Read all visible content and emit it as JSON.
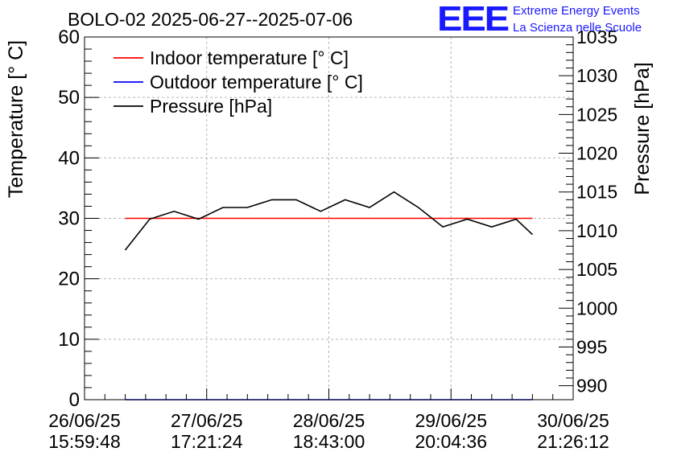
{
  "chart_data": {
    "type": "line",
    "title": "BOLO-02 2025-06-27--2025-07-06",
    "logo": {
      "mark": "EEE",
      "line1": "Extreme Energy Events",
      "line2": "La Scienza nelle Scuole",
      "color": "#1a1aff"
    },
    "ylabel": "Temperature [° C]",
    "y2label": "Pressure [hPa]",
    "ylim": [
      0,
      60
    ],
    "y2lim": [
      988.2,
      1035
    ],
    "yticks": [
      "0",
      "10",
      "20",
      "30",
      "40",
      "50",
      "60"
    ],
    "y2ticks": [
      "990",
      "995",
      "1000",
      "1005",
      "1010",
      "1015",
      "1020",
      "1025",
      "1030",
      "1035"
    ],
    "xlim": [
      0,
      4
    ],
    "xticks": [
      {
        "date": "26/06/25",
        "time": "15:59:48"
      },
      {
        "date": "27/06/25",
        "time": "17:21:24"
      },
      {
        "date": "28/06/25",
        "time": "18:43:00"
      },
      {
        "date": "29/06/25",
        "time": "20:04:36"
      },
      {
        "date": "30/06/25",
        "time": "21:26:12"
      }
    ],
    "grid": true,
    "legend_position": "top-left",
    "series": [
      {
        "name": "Indoor temperature [° C]",
        "color": "#ff0000",
        "axis": "left",
        "x": [
          0.333,
          3.667
        ],
        "values": [
          30,
          30
        ]
      },
      {
        "name": "Outdoor temperature [° C]",
        "color": "#0000ff",
        "axis": "left",
        "x": [
          0.333,
          3.667
        ],
        "values": [
          0,
          0
        ]
      },
      {
        "name": "Pressure [hPa]",
        "color": "#000000",
        "axis": "right",
        "x": [
          0.333,
          0.533,
          0.733,
          0.933,
          1.133,
          1.333,
          1.533,
          1.733,
          1.933,
          2.133,
          2.333,
          2.533,
          2.733,
          2.933,
          3.133,
          3.333,
          3.533,
          3.667
        ],
        "values": [
          1007.5,
          1011.5,
          1012.5,
          1011.5,
          1013,
          1013,
          1014,
          1014,
          1012.5,
          1014,
          1013,
          1015,
          1013,
          1010.5,
          1011.5,
          1010.5,
          1011.5,
          1009.5
        ]
      }
    ]
  }
}
